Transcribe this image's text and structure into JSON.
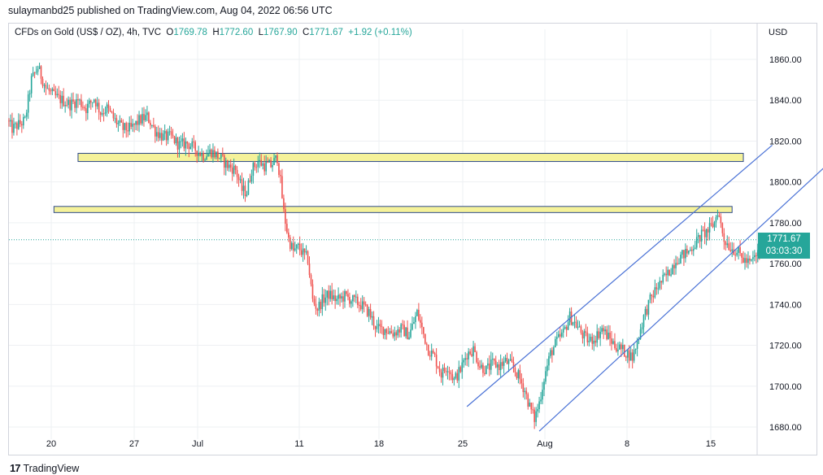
{
  "header": {
    "text": "sulaymanbd25 published on TradingView.com, Aug 04, 2022 06:56 UTC"
  },
  "legend": {
    "symbol": "CFDs on Gold (US$ / OZ), 4h, TVC",
    "open_label": "O",
    "open": "1769.78",
    "high_label": "H",
    "high": "1772.60",
    "low_label": "L",
    "low": "1767.90",
    "close_label": "C",
    "close": "1771.67",
    "change": "+1.92 (+0.11%)"
  },
  "currency": "USD",
  "price_tag": {
    "price": "1771.67",
    "countdown": "03:03:30"
  },
  "footer": {
    "brand": "TradingView",
    "logo_glyph": "17"
  },
  "colors": {
    "up": "#26a69a",
    "down": "#ef5350",
    "zone_fill": "#f5f29a",
    "zone_border": "#2e4a8a",
    "trendline": "#4a72d6",
    "grid": "#eef0f3"
  },
  "chart_data": {
    "type": "candlestick",
    "ylim": [
      1672,
      1868
    ],
    "y_ticks": [
      "1680.00",
      "1700.00",
      "1720.00",
      "1740.00",
      "1760.00",
      "1780.00",
      "1800.00",
      "1820.00",
      "1840.00",
      "1860.00"
    ],
    "x_ticks": [
      "20",
      "27",
      "Jul",
      "11",
      "18",
      "25",
      "Aug",
      "8",
      "15"
    ],
    "last_price": 1771.67,
    "path": [
      [
        0,
        1830
      ],
      [
        3,
        1826
      ],
      [
        7,
        1828
      ],
      [
        11,
        1830
      ],
      [
        15,
        1850
      ],
      [
        19,
        1856
      ],
      [
        24,
        1846
      ],
      [
        29,
        1842
      ],
      [
        34,
        1840
      ],
      [
        39,
        1838
      ],
      [
        44,
        1840
      ],
      [
        49,
        1836
      ],
      [
        54,
        1841
      ],
      [
        58,
        1834
      ],
      [
        62,
        1836
      ],
      [
        67,
        1830
      ],
      [
        72,
        1826
      ],
      [
        77,
        1826
      ],
      [
        82,
        1830
      ],
      [
        87,
        1832
      ],
      [
        92,
        1825
      ],
      [
        97,
        1822
      ],
      [
        102,
        1822
      ],
      [
        107,
        1818
      ],
      [
        112,
        1819
      ],
      [
        117,
        1816
      ],
      [
        122,
        1813
      ],
      [
        127,
        1815
      ],
      [
        132,
        1812
      ],
      [
        137,
        1808
      ],
      [
        142,
        1806
      ],
      [
        146,
        1796
      ],
      [
        149,
        1795
      ],
      [
        152,
        1806
      ],
      [
        156,
        1810
      ],
      [
        160,
        1808
      ],
      [
        164,
        1808
      ],
      [
        168,
        1812
      ],
      [
        170,
        1800
      ],
      [
        172,
        1785
      ],
      [
        175,
        1772
      ],
      [
        178,
        1766
      ],
      [
        181,
        1768
      ],
      [
        184,
        1765
      ],
      [
        187,
        1762
      ],
      [
        190,
        1742
      ],
      [
        193,
        1738
      ],
      [
        196,
        1742
      ],
      [
        200,
        1745
      ],
      [
        205,
        1742
      ],
      [
        210,
        1744
      ],
      [
        215,
        1742
      ],
      [
        220,
        1740
      ],
      [
        225,
        1736
      ],
      [
        230,
        1728
      ],
      [
        235,
        1728
      ],
      [
        240,
        1726
      ],
      [
        245,
        1728
      ],
      [
        250,
        1725
      ],
      [
        255,
        1736
      ],
      [
        258,
        1728
      ],
      [
        262,
        1718
      ],
      [
        266,
        1714
      ],
      [
        270,
        1706
      ],
      [
        274,
        1710
      ],
      [
        278,
        1703
      ],
      [
        282,
        1708
      ],
      [
        286,
        1716
      ],
      [
        290,
        1718
      ],
      [
        294,
        1710
      ],
      [
        298,
        1708
      ],
      [
        302,
        1711
      ],
      [
        306,
        1710
      ],
      [
        310,
        1712
      ],
      [
        314,
        1710
      ],
      [
        318,
        1705
      ],
      [
        322,
        1698
      ],
      [
        325,
        1690
      ],
      [
        328,
        1684
      ],
      [
        331,
        1692
      ],
      [
        334,
        1704
      ],
      [
        338,
        1716
      ],
      [
        342,
        1722
      ],
      [
        346,
        1726
      ],
      [
        350,
        1734
      ],
      [
        354,
        1730
      ],
      [
        358,
        1725
      ],
      [
        362,
        1722
      ],
      [
        366,
        1724
      ],
      [
        370,
        1728
      ],
      [
        374,
        1724
      ],
      [
        378,
        1720
      ],
      [
        382,
        1718
      ],
      [
        386,
        1716
      ],
      [
        389,
        1714
      ],
      [
        392,
        1722
      ],
      [
        396,
        1734
      ],
      [
        400,
        1742
      ],
      [
        404,
        1748
      ],
      [
        408,
        1752
      ],
      [
        412,
        1756
      ],
      [
        416,
        1762
      ],
      [
        420,
        1764
      ],
      [
        424,
        1766
      ],
      [
        428,
        1770
      ],
      [
        432,
        1774
      ],
      [
        436,
        1776
      ],
      [
        440,
        1780
      ],
      [
        442,
        1786
      ],
      [
        446,
        1772
      ],
      [
        450,
        1768
      ],
      [
        454,
        1766
      ],
      [
        458,
        1762
      ],
      [
        462,
        1760
      ],
      [
        466,
        1764
      ],
      [
        470,
        1768
      ],
      [
        474,
        1770
      ],
      [
        478,
        1772
      ]
    ],
    "zones": [
      {
        "x0": 43,
        "x1": 457,
        "low": 1810,
        "high": 1814
      },
      {
        "x0": 28,
        "x1": 450,
        "low": 1785,
        "high": 1788
      }
    ],
    "channel": [
      {
        "x0": 285,
        "y0": 1690,
        "x1": 475,
        "y1": 1818
      },
      {
        "x0": 330,
        "y0": 1678,
        "x1": 521,
        "y1": 1817
      }
    ]
  }
}
